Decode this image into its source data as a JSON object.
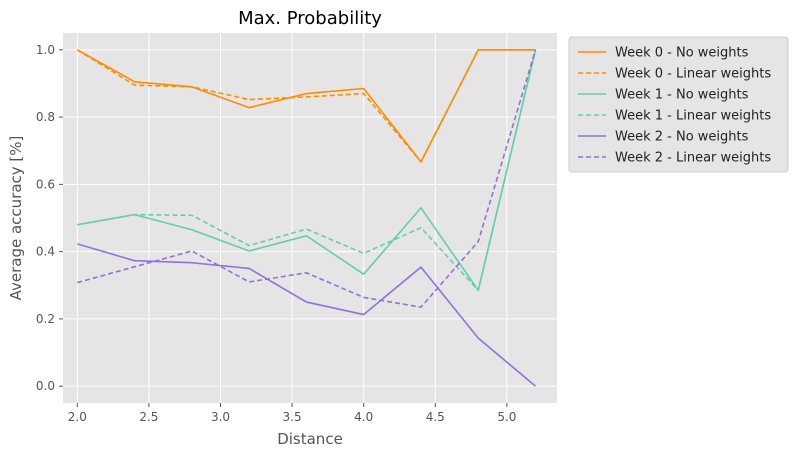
{
  "chart_data": {
    "type": "line",
    "title": "Max. Probability",
    "xlabel": "Distance",
    "ylabel": "Average accuracy [%]",
    "xlim": [
      1.9,
      5.35
    ],
    "ylim": [
      -0.05,
      1.05
    ],
    "xticks": [
      2.0,
      2.5,
      3.0,
      3.5,
      4.0,
      4.5,
      5.0
    ],
    "yticks": [
      0.0,
      0.2,
      0.4,
      0.6,
      0.8,
      1.0
    ],
    "grid": true,
    "legend_position": "outside-top-right",
    "x": [
      2.0,
      2.4,
      2.8,
      3.2,
      3.6,
      4.0,
      4.4,
      4.8,
      5.2
    ],
    "series": [
      {
        "name": "Week 0 - No weights",
        "color": "#ff8c00",
        "dash": "solid",
        "values": [
          1.0,
          0.905,
          0.89,
          0.828,
          0.87,
          0.885,
          0.667,
          1.0,
          1.0
        ]
      },
      {
        "name": "Week 0 - Linear weights",
        "color": "#ff8c00",
        "dash": "dashed",
        "values": [
          1.0,
          0.895,
          0.89,
          0.852,
          0.86,
          0.87,
          0.667,
          1.0,
          1.0
        ]
      },
      {
        "name": "Week 1 - No weights",
        "color": "#66cdaa",
        "dash": "solid",
        "values": [
          0.48,
          0.51,
          0.465,
          0.402,
          0.447,
          0.333,
          0.53,
          0.285,
          1.0
        ]
      },
      {
        "name": "Week 1 - Linear weights",
        "color": "#66cdaa",
        "dash": "dashed",
        "values": [
          0.48,
          0.51,
          0.508,
          0.418,
          0.467,
          0.395,
          0.471,
          0.285,
          1.0
        ]
      },
      {
        "name": "Week 2 - No weights",
        "color": "#9370db",
        "dash": "solid",
        "values": [
          0.423,
          0.373,
          0.367,
          0.35,
          0.25,
          0.213,
          0.354,
          0.143,
          0.0
        ]
      },
      {
        "name": "Week 2 - Linear weights",
        "color": "#9370db",
        "dash": "dashed",
        "values": [
          0.308,
          0.355,
          0.402,
          0.31,
          0.337,
          0.264,
          0.235,
          0.43,
          1.0
        ]
      }
    ]
  }
}
